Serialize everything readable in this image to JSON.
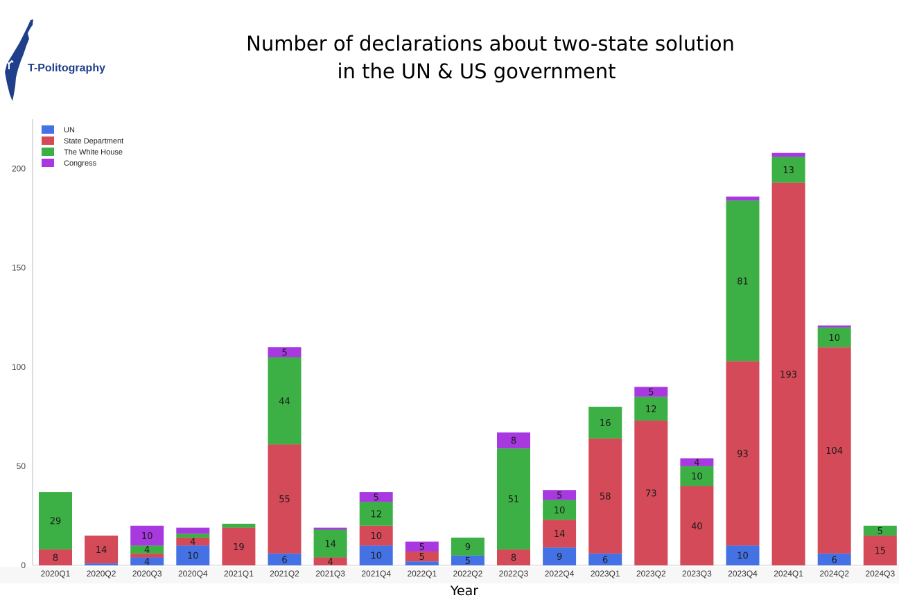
{
  "logo": {
    "text": "T-Politography"
  },
  "title_lines": [
    "Number of declarations about two-state solution",
    "in the UN & US government"
  ],
  "chart_data": {
    "type": "bar",
    "stacked": true,
    "title": "Number of declarations about two-state solution in the UN & US government",
    "xlabel": "Year",
    "ylabel": "",
    "ylim": [
      0,
      215
    ],
    "yticks": [
      0,
      50,
      100,
      150,
      200
    ],
    "grid": false,
    "legend_position": "top-left",
    "categories": [
      "2020Q1",
      "2020Q2",
      "2020Q3",
      "2020Q4",
      "2021Q1",
      "2021Q2",
      "2021Q3",
      "2021Q4",
      "2022Q1",
      "2022Q2",
      "2022Q3",
      "2022Q4",
      "2023Q1",
      "2023Q2",
      "2023Q3",
      "2023Q4",
      "2024Q1",
      "2024Q2",
      "2024Q3"
    ],
    "series": [
      {
        "name": "UN",
        "color": "#4472e4",
        "values": [
          0,
          1,
          4,
          10,
          0,
          6,
          0,
          10,
          2,
          5,
          0,
          9,
          6,
          0,
          0,
          10,
          0,
          6,
          0
        ]
      },
      {
        "name": "State Department",
        "color": "#d44a58",
        "values": [
          8,
          14,
          2,
          4,
          19,
          55,
          4,
          10,
          5,
          0,
          8,
          14,
          58,
          73,
          40,
          93,
          193,
          104,
          15
        ]
      },
      {
        "name": "The White House",
        "color": "#3cb045",
        "values": [
          29,
          0,
          4,
          2,
          2,
          44,
          14,
          12,
          0,
          9,
          51,
          10,
          16,
          12,
          10,
          81,
          13,
          10,
          5
        ]
      },
      {
        "name": "Congress",
        "color": "#a838e0",
        "values": [
          0,
          0,
          10,
          3,
          0,
          5,
          1,
          5,
          5,
          0,
          8,
          5,
          0,
          5,
          4,
          2,
          2,
          1,
          0
        ]
      }
    ],
    "labels": [
      {
        "category": "2020Q1",
        "series": "State Department",
        "text": "8"
      },
      {
        "category": "2020Q1",
        "series": "The White House",
        "text": "29"
      },
      {
        "category": "2020Q2",
        "series": "State Department",
        "text": "14"
      },
      {
        "category": "2020Q3",
        "series": "UN",
        "text": "4"
      },
      {
        "category": "2020Q3",
        "series": "The White House",
        "text": "4"
      },
      {
        "category": "2020Q3",
        "series": "Congress",
        "text": "10"
      },
      {
        "category": "2020Q4",
        "series": "UN",
        "text": "10"
      },
      {
        "category": "2020Q4",
        "series": "State Department",
        "text": "4"
      },
      {
        "category": "2021Q1",
        "series": "State Department",
        "text": "19"
      },
      {
        "category": "2021Q2",
        "series": "UN",
        "text": "6"
      },
      {
        "category": "2021Q2",
        "series": "State Department",
        "text": "55"
      },
      {
        "category": "2021Q2",
        "series": "The White House",
        "text": "44"
      },
      {
        "category": "2021Q2",
        "series": "Congress",
        "text": "5"
      },
      {
        "category": "2021Q3",
        "series": "State Department",
        "text": "4"
      },
      {
        "category": "2021Q3",
        "series": "The White House",
        "text": "14"
      },
      {
        "category": "2021Q4",
        "series": "UN",
        "text": "10"
      },
      {
        "category": "2021Q4",
        "series": "State Department",
        "text": "10"
      },
      {
        "category": "2021Q4",
        "series": "The White House",
        "text": "12"
      },
      {
        "category": "2021Q4",
        "series": "Congress",
        "text": "5"
      },
      {
        "category": "2022Q1",
        "series": "State Department",
        "text": "5"
      },
      {
        "category": "2022Q1",
        "series": "Congress",
        "text": "5"
      },
      {
        "category": "2022Q2",
        "series": "UN",
        "text": "5"
      },
      {
        "category": "2022Q2",
        "series": "The White House",
        "text": "9"
      },
      {
        "category": "2022Q3",
        "series": "State Department",
        "text": "8"
      },
      {
        "category": "2022Q3",
        "series": "The White House",
        "text": "51"
      },
      {
        "category": "2022Q3",
        "series": "Congress",
        "text": "8"
      },
      {
        "category": "2022Q4",
        "series": "UN",
        "text": "9"
      },
      {
        "category": "2022Q4",
        "series": "State Department",
        "text": "14"
      },
      {
        "category": "2022Q4",
        "series": "The White House",
        "text": "10"
      },
      {
        "category": "2022Q4",
        "series": "Congress",
        "text": "5"
      },
      {
        "category": "2023Q1",
        "series": "UN",
        "text": "6"
      },
      {
        "category": "2023Q1",
        "series": "State Department",
        "text": "58"
      },
      {
        "category": "2023Q1",
        "series": "The White House",
        "text": "16"
      },
      {
        "category": "2023Q2",
        "series": "State Department",
        "text": "73"
      },
      {
        "category": "2023Q2",
        "series": "The White House",
        "text": "12"
      },
      {
        "category": "2023Q2",
        "series": "Congress",
        "text": "5"
      },
      {
        "category": "2023Q3",
        "series": "State Department",
        "text": "40"
      },
      {
        "category": "2023Q3",
        "series": "The White House",
        "text": "10"
      },
      {
        "category": "2023Q3",
        "series": "Congress",
        "text": "4"
      },
      {
        "category": "2023Q4",
        "series": "UN",
        "text": "10"
      },
      {
        "category": "2023Q4",
        "series": "State Department",
        "text": "93"
      },
      {
        "category": "2023Q4",
        "series": "The White House",
        "text": "81"
      },
      {
        "category": "2024Q1",
        "series": "State Department",
        "text": "193"
      },
      {
        "category": "2024Q1",
        "series": "The White House",
        "text": "13"
      },
      {
        "category": "2024Q2",
        "series": "UN",
        "text": "6"
      },
      {
        "category": "2024Q2",
        "series": "State Department",
        "text": "104"
      },
      {
        "category": "2024Q2",
        "series": "The White House",
        "text": "10"
      },
      {
        "category": "2024Q3",
        "series": "State Department",
        "text": "15"
      },
      {
        "category": "2024Q3",
        "series": "The White House",
        "text": "5"
      }
    ]
  }
}
